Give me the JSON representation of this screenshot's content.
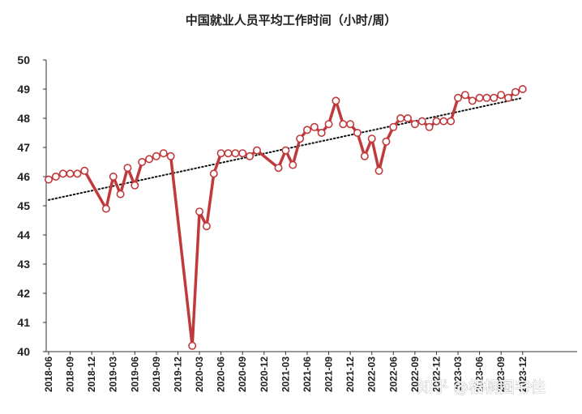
{
  "watermark": "知乎 @梧桐图宅佳",
  "chart_data": {
    "type": "line",
    "title": "中国就业人员平均工作时间（小时/周）",
    "xlabel": "",
    "ylabel": "",
    "ylim": [
      40,
      50
    ],
    "yticks": [
      "40",
      "41",
      "42",
      "43",
      "44",
      "45",
      "46",
      "47",
      "48",
      "49",
      "50"
    ],
    "xtick_labels": [
      "2018-06",
      "2018-09",
      "2018-12",
      "2019-03",
      "2019-06",
      "2019-09",
      "2019-12",
      "2020-03",
      "2020-06",
      "2020-09",
      "2020-12",
      "2021-03",
      "2021-06",
      "2021-09",
      "2021-12",
      "2022-03",
      "2022-06",
      "2022-09",
      "2022-12",
      "2023-03",
      "2023-06",
      "2023-09",
      "2023-12"
    ],
    "grid": false,
    "legend": "none",
    "colors": {
      "line": "#c0393b",
      "marker_fill": "#ffffff",
      "trend": "#111111"
    },
    "series": [
      {
        "x": [
          "2018-06",
          "2018-07",
          "2018-08",
          "2018-09",
          "2018-10",
          "2018-11",
          "2018-12",
          "2019-01",
          "2019-02",
          "2019-03",
          "2019-04",
          "2019-05",
          "2019-06",
          "2019-07",
          "2019-08",
          "2019-09",
          "2019-10",
          "2019-11",
          "2019-12",
          "2020-01",
          "2020-02",
          "2020-03",
          "2020-04",
          "2020-05",
          "2020-06",
          "2020-07",
          "2020-08",
          "2020-09",
          "2020-10",
          "2020-11",
          "2020-12",
          "2021-01",
          "2021-02",
          "2021-03",
          "2021-04",
          "2021-05",
          "2021-06",
          "2021-07",
          "2021-08",
          "2021-09",
          "2021-10",
          "2021-11",
          "2021-12",
          "2022-01",
          "2022-02",
          "2022-03",
          "2022-04",
          "2022-05",
          "2022-06",
          "2022-07",
          "2022-08",
          "2022-09",
          "2022-10",
          "2022-11",
          "2022-12",
          "2023-01",
          "2023-02",
          "2023-03",
          "2023-04",
          "2023-05",
          "2023-06",
          "2023-07",
          "2023-08",
          "2023-09",
          "2023-10",
          "2023-11",
          "2023-12"
        ],
        "values": [
          45.9,
          46.0,
          46.1,
          46.1,
          46.1,
          46.2,
          null,
          null,
          44.9,
          46.0,
          45.4,
          46.3,
          45.7,
          46.5,
          46.6,
          46.7,
          46.8,
          46.7,
          null,
          null,
          40.2,
          44.8,
          44.3,
          46.1,
          46.8,
          46.8,
          46.8,
          46.8,
          46.7,
          46.9,
          null,
          null,
          46.3,
          46.9,
          46.4,
          47.3,
          47.6,
          47.7,
          47.5,
          47.8,
          48.6,
          47.8,
          47.8,
          47.5,
          46.7,
          47.3,
          46.2,
          47.2,
          47.7,
          48.0,
          48.0,
          47.8,
          47.9,
          47.7,
          47.9,
          47.9,
          47.9,
          48.7,
          48.8,
          48.6,
          48.7,
          48.7,
          48.7,
          48.8,
          48.7,
          48.9,
          49.0
        ]
      }
    ],
    "trendline": {
      "style": "dotted",
      "start": [
        "2018-06",
        45.2
      ],
      "end": [
        "2023-12",
        48.7
      ]
    }
  }
}
